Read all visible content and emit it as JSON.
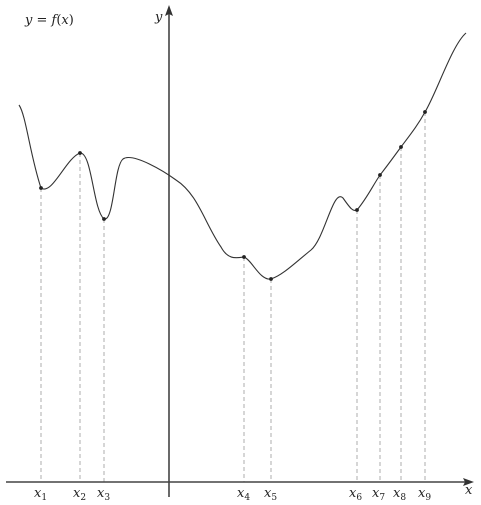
{
  "figure": {
    "function_label": {
      "lhs": "y",
      "eq": " = ",
      "f": "f",
      "lp": "(",
      "var": "x",
      "rp": ")"
    },
    "x_axis_label": "x",
    "y_axis_label": "y",
    "marked_points": [
      {
        "letter": "x",
        "index": "1"
      },
      {
        "letter": "x",
        "index": "2"
      },
      {
        "letter": "x",
        "index": "3"
      },
      {
        "letter": "x",
        "index": "4"
      },
      {
        "letter": "x",
        "index": "5"
      },
      {
        "letter": "x",
        "index": "6"
      },
      {
        "letter": "x",
        "index": "7"
      },
      {
        "letter": "x",
        "index": "8"
      },
      {
        "letter": "x",
        "index": "9"
      }
    ]
  }
}
